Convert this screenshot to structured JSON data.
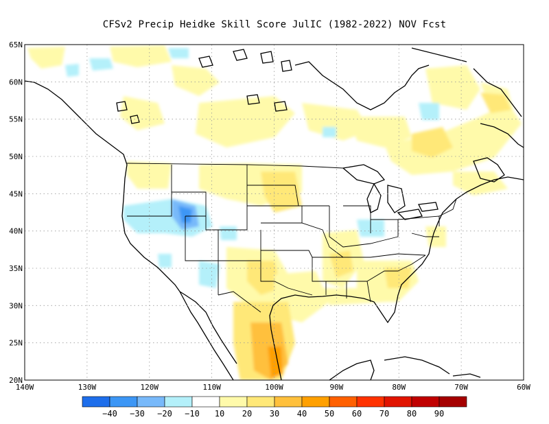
{
  "title": "CFSv2 Precip Heidke Skill Score JulIC (1982-2022) NOV Fcst",
  "map": {
    "lon_range": [
      -140,
      -60
    ],
    "lat_range": [
      20,
      65
    ],
    "lat_labels": [
      "65N",
      "60N",
      "55N",
      "50N",
      "45N",
      "40N",
      "35N",
      "30N",
      "25N",
      "20N"
    ],
    "lon_labels": [
      "140W",
      "130W",
      "120W",
      "110W",
      "100W",
      "90W",
      "80W",
      "70W",
      "60W"
    ],
    "gridlines": true
  },
  "colorbar": {
    "colors": [
      "#1e6eeb",
      "#3c96f5",
      "#78b9fa",
      "#b4f0fa",
      "#ffffff",
      "#fffaaa",
      "#ffe878",
      "#ffc03c",
      "#ffa000",
      "#ff6000",
      "#ff3200",
      "#e11400",
      "#c00000",
      "#a50000"
    ],
    "labels": [
      "-40",
      "-30",
      "-20",
      "-10",
      "10",
      "20",
      "30",
      "40",
      "50",
      "60",
      "70",
      "80",
      "90"
    ]
  }
}
